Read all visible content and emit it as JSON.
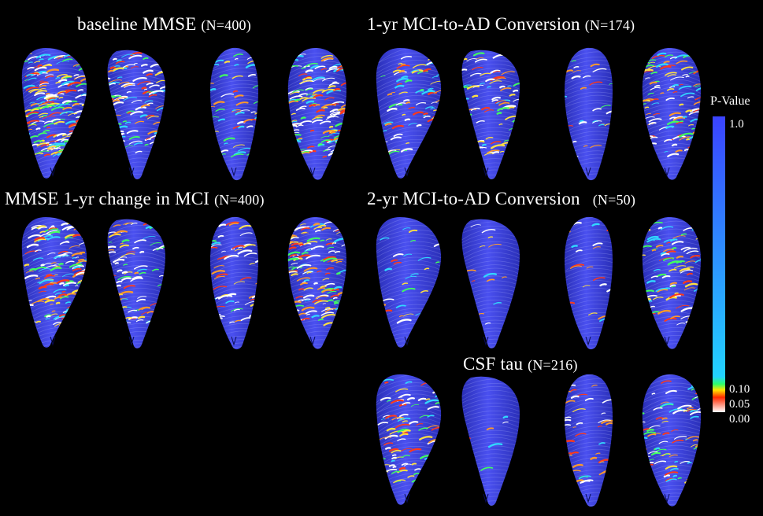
{
  "panels": [
    {
      "id": "baseline-mmse",
      "title": "baseline MMSE",
      "n": "(N=400)",
      "views": [
        {
          "hot": 0.78
        },
        {
          "hot": 0.45
        },
        {
          "hot": 0.22
        },
        {
          "hot": 0.62
        }
      ]
    },
    {
      "id": "mci-ad-1yr",
      "title": "1-yr MCI-to-AD Conversion",
      "n": "(N=174)",
      "views": [
        {
          "hot": 0.3
        },
        {
          "hot": 0.32
        },
        {
          "hot": 0.12
        },
        {
          "hot": 0.42
        }
      ]
    },
    {
      "id": "mmse-change",
      "title": "MMSE 1-yr change in MCI",
      "n": "(N=400)",
      "views": [
        {
          "hot": 0.55
        },
        {
          "hot": 0.36
        },
        {
          "hot": 0.28
        },
        {
          "hot": 0.55
        }
      ]
    },
    {
      "id": "mci-ad-2yr",
      "title": "2-yr MCI-to-AD Conversion",
      "n": "(N=50)",
      "views": [
        {
          "hot": 0.12
        },
        {
          "hot": 0.05
        },
        {
          "hot": 0.08
        },
        {
          "hot": 0.35
        }
      ]
    },
    {
      "id": "csf-tau",
      "title": "CSF tau",
      "n": "(N=216)",
      "views": [
        {
          "hot": 0.38
        },
        {
          "hot": 0.03
        },
        {
          "hot": 0.18
        },
        {
          "hot": 0.3
        }
      ]
    }
  ],
  "colorbar": {
    "title": "P-Value",
    "ticks": [
      "1.0",
      "0.10",
      "0.05",
      "0.00"
    ],
    "colors": [
      "#3a43ff",
      "#22d3ff",
      "#2dff6a",
      "#ffe600",
      "#ff2a00",
      "#ffffff"
    ]
  },
  "colors": {
    "background": "#000000",
    "surface": "#4a50f0",
    "surface_dark": "#2a2fb8",
    "hot_colors": [
      "#ffffff",
      "#ff3a1a",
      "#ff9a2a",
      "#ffe040",
      "#40ff60",
      "#30d8ff",
      "#ffffff"
    ]
  }
}
